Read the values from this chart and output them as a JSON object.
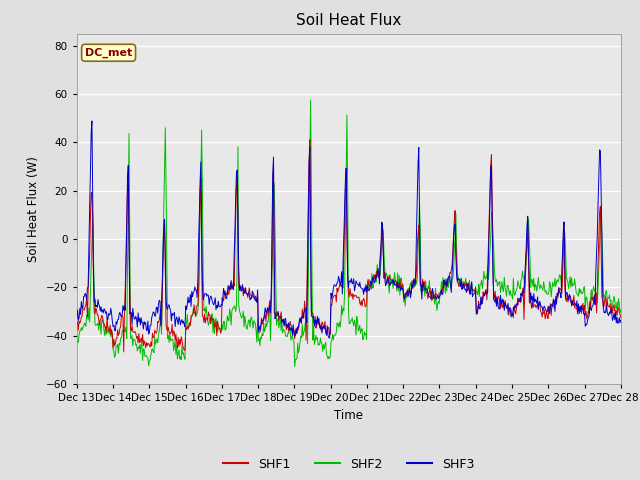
{
  "title": "Soil Heat Flux",
  "ylabel": "Soil Heat Flux (W)",
  "xlabel": "Time",
  "ylim": [
    -60,
    85
  ],
  "yticks": [
    -60,
    -40,
    -20,
    0,
    20,
    40,
    60,
    80
  ],
  "colors": {
    "SHF1": "#cc0000",
    "SHF2": "#00bb00",
    "SHF3": "#0000cc"
  },
  "legend_label": "DC_met",
  "fig_bg_color": "#e0e0e0",
  "plot_bg_color": "#e8e8e8",
  "tick_labels": [
    "Dec 13",
    "Dec 14",
    "Dec 15",
    "Dec 16",
    "Dec 17",
    "Dec 18",
    "Dec 19",
    "Dec 20",
    "Dec 21",
    "Dec 22",
    "Dec 23",
    "Dec 24",
    "Dec 25",
    "Dec 26",
    "Dec 27",
    "Dec 28"
  ]
}
